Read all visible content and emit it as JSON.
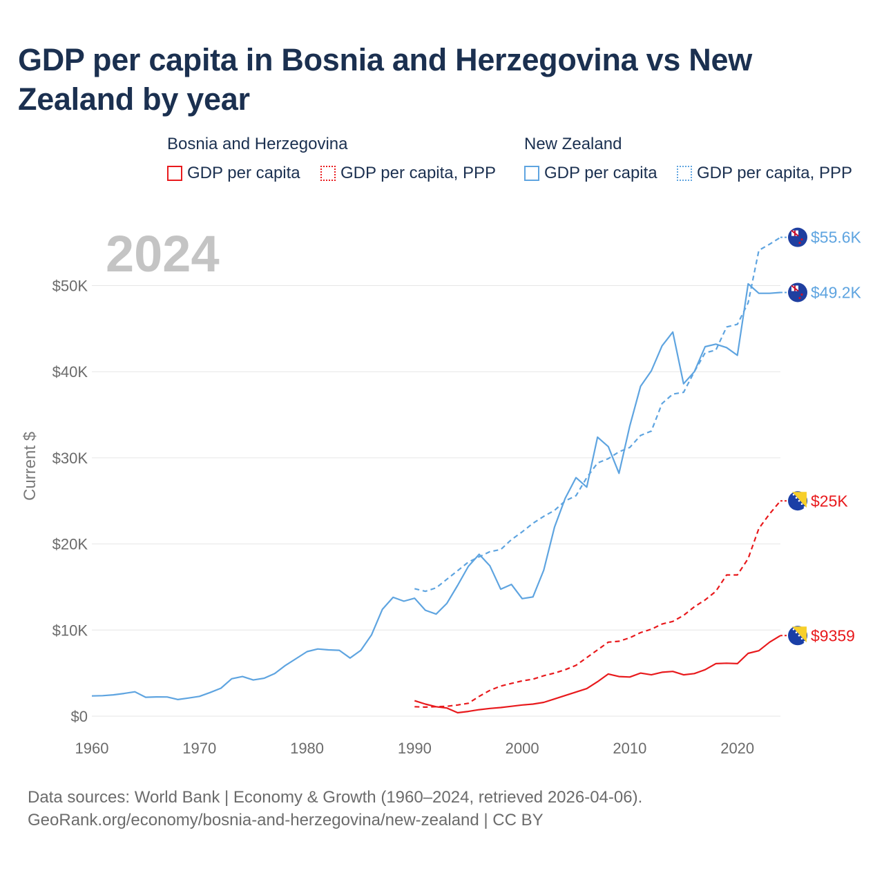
{
  "title": "GDP per capita in Bosnia and Herzegovina vs New Zealand by year",
  "legend": {
    "groups": [
      {
        "country": "Bosnia and Herzegovina",
        "color": "#e8191c",
        "items": [
          "GDP per capita",
          "GDP per capita, PPP"
        ]
      },
      {
        "country": "New Zealand",
        "color": "#5ea4e0",
        "items": [
          "GDP per capita",
          "GDP per capita, PPP"
        ]
      }
    ]
  },
  "year_label": "2024",
  "footer": {
    "line1": "Data sources: World Bank | Economy & Growth (1960–2024, retrieved 2026-04-06).",
    "line2": "GeoRank.org/economy/bosnia-and-herzegovina/new-zealand | CC BY"
  },
  "chart_data": {
    "type": "line",
    "title": "GDP per capita in Bosnia and Herzegovina vs New Zealand by year",
    "xlabel": "",
    "ylabel": "Current $",
    "xlim": [
      1960,
      2024
    ],
    "ylim": [
      0,
      55000
    ],
    "x_ticks": [
      1960,
      1970,
      1980,
      1990,
      2000,
      2010,
      2020
    ],
    "x_tick_labels": [
      "1960",
      "1970",
      "1980",
      "1990",
      "2000",
      "2010",
      "2020"
    ],
    "y_ticks": [
      0,
      10000,
      20000,
      30000,
      40000,
      50000
    ],
    "y_tick_labels": [
      "$0",
      "$10K",
      "$20K",
      "$30K",
      "$40K",
      "$50K"
    ],
    "grid": true,
    "series": [
      {
        "name": "New Zealand GDP per capita",
        "country": "New Zealand",
        "color": "#5ea4e0",
        "dash": "solid",
        "end_label": "$49.2K",
        "x": [
          1960,
          1961,
          1962,
          1963,
          1964,
          1965,
          1966,
          1967,
          1968,
          1969,
          1970,
          1971,
          1972,
          1973,
          1974,
          1975,
          1976,
          1977,
          1978,
          1979,
          1980,
          1981,
          1982,
          1983,
          1984,
          1985,
          1986,
          1987,
          1988,
          1989,
          1990,
          1991,
          1992,
          1993,
          1994,
          1995,
          1996,
          1997,
          1998,
          1999,
          2000,
          2001,
          2002,
          2003,
          2004,
          2005,
          2006,
          2007,
          2008,
          2009,
          2010,
          2011,
          2012,
          2013,
          2014,
          2015,
          2016,
          2017,
          2018,
          2019,
          2020,
          2021,
          2022,
          2023,
          2024
        ],
        "values": [
          2350,
          2380,
          2480,
          2640,
          2830,
          2200,
          2240,
          2230,
          1930,
          2110,
          2300,
          2750,
          3250,
          4350,
          4600,
          4200,
          4400,
          4950,
          5900,
          6700,
          7500,
          7800,
          7700,
          7650,
          6750,
          7650,
          9450,
          12400,
          13800,
          13350,
          13700,
          12300,
          11850,
          13100,
          15200,
          17400,
          18800,
          17450,
          14750,
          15300,
          13650,
          13850,
          16950,
          21950,
          25300,
          27700,
          26600,
          32400,
          31300,
          28200,
          33700,
          38300,
          40100,
          43000,
          44600,
          38600,
          40000,
          42900,
          43200,
          42800,
          41900,
          50200,
          49100,
          49100,
          49200
        ]
      },
      {
        "name": "New Zealand GDP per capita, PPP",
        "country": "New Zealand",
        "color": "#5ea4e0",
        "dash": "dashed",
        "end_label": "$55.6K",
        "x": [
          1990,
          1991,
          1992,
          1993,
          1994,
          1995,
          1996,
          1997,
          1998,
          1999,
          2000,
          2001,
          2002,
          2003,
          2004,
          2005,
          2006,
          2007,
          2008,
          2009,
          2010,
          2011,
          2012,
          2013,
          2014,
          2015,
          2016,
          2017,
          2018,
          2019,
          2020,
          2021,
          2022,
          2023,
          2024
        ],
        "values": [
          14800,
          14500,
          14900,
          15900,
          16900,
          17900,
          18500,
          19100,
          19350,
          20500,
          21400,
          22400,
          23200,
          23900,
          25000,
          25600,
          27700,
          29400,
          29900,
          30700,
          31200,
          32600,
          33100,
          36300,
          37400,
          37600,
          40000,
          42200,
          42500,
          45200,
          45500,
          48000,
          54100,
          54800,
          55600
        ]
      },
      {
        "name": "Bosnia and Herzegovina GDP per capita",
        "country": "Bosnia and Herzegovina",
        "color": "#e8191c",
        "dash": "solid",
        "end_label": "$9359",
        "x": [
          1990,
          1991,
          1992,
          1993,
          1994,
          1995,
          1996,
          1997,
          1998,
          1999,
          2000,
          2001,
          2002,
          2003,
          2004,
          2005,
          2006,
          2007,
          2008,
          2009,
          2010,
          2011,
          2012,
          2013,
          2014,
          2015,
          2016,
          2017,
          2018,
          2019,
          2020,
          2021,
          2022,
          2023,
          2024
        ],
        "values": [
          1800,
          1400,
          1100,
          950,
          400,
          550,
          750,
          900,
          1000,
          1150,
          1300,
          1400,
          1600,
          2000,
          2400,
          2800,
          3200,
          4000,
          4900,
          4600,
          4550,
          5000,
          4800,
          5100,
          5200,
          4800,
          4950,
          5400,
          6100,
          6150,
          6100,
          7300,
          7600,
          8600,
          9359
        ]
      },
      {
        "name": "Bosnia and Herzegovina GDP per capita, PPP",
        "country": "Bosnia and Herzegovina",
        "color": "#e8191c",
        "dash": "dashed",
        "end_label": "$25K",
        "x": [
          1990,
          1991,
          1992,
          1993,
          1994,
          1995,
          1996,
          1997,
          1998,
          1999,
          2000,
          2001,
          2002,
          2003,
          2004,
          2005,
          2006,
          2007,
          2008,
          2009,
          2010,
          2011,
          2012,
          2013,
          2014,
          2015,
          2016,
          2017,
          2018,
          2019,
          2020,
          2021,
          2022,
          2023,
          2024
        ],
        "values": [
          1100,
          1050,
          1100,
          1150,
          1300,
          1500,
          2300,
          3000,
          3500,
          3800,
          4100,
          4300,
          4700,
          5000,
          5400,
          5900,
          6800,
          7700,
          8600,
          8700,
          9100,
          9700,
          10100,
          10700,
          11000,
          11700,
          12700,
          13500,
          14500,
          16400,
          16400,
          18300,
          21800,
          23500,
          25000
        ]
      }
    ]
  }
}
